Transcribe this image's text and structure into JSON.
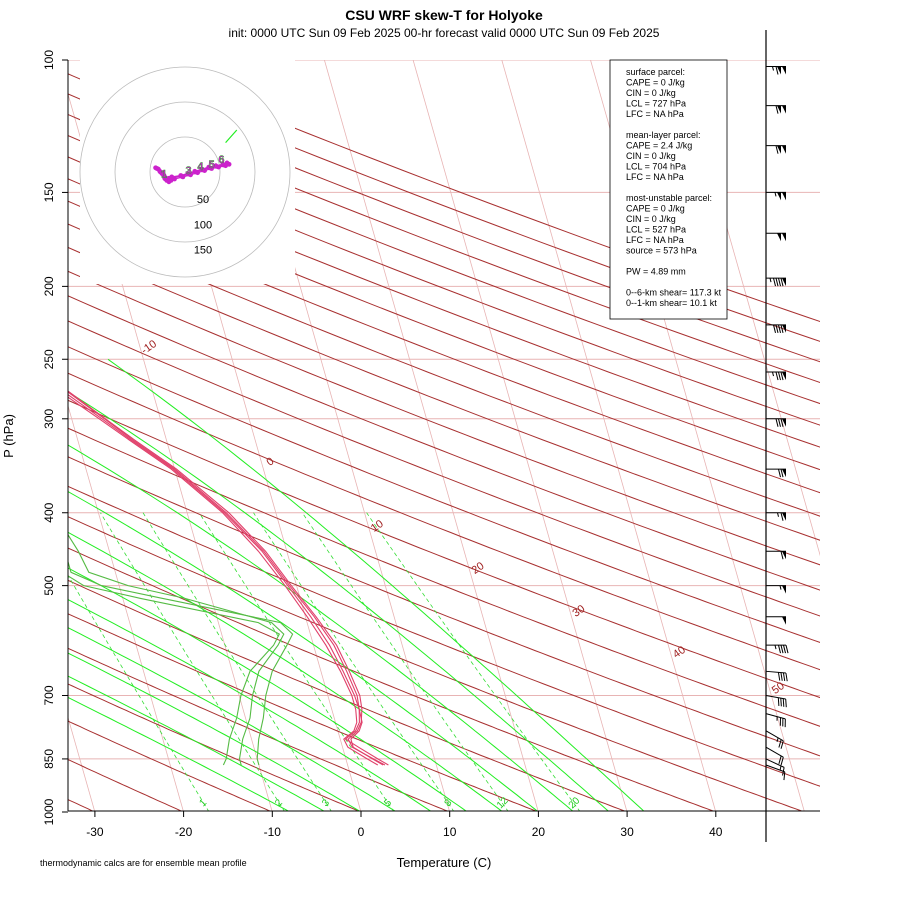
{
  "chart_data": {
    "type": "skew-T",
    "title": "CSU WRF skew-T for Holyoke",
    "subtitle": "init: 0000 UTC Sun 09 Feb 2025     00-hr forecast valid 0000 UTC Sun 09 Feb 2025",
    "xlabel": "Temperature (C)",
    "ylabel": "P (hPa)",
    "footnote": "thermodynamic calcs are for ensemble mean profile",
    "xlim": [
      -33,
      52
    ],
    "ylim": [
      1050,
      100
    ],
    "x_ticks": [
      "-30",
      "-20",
      "-10",
      "0",
      "10",
      "20",
      "30",
      "40"
    ],
    "p_ticks": [
      "100",
      "150",
      "200",
      "250",
      "300",
      "400",
      "500",
      "700",
      "850",
      "1000"
    ],
    "p_tick_values": [
      100,
      150,
      200,
      250,
      300,
      400,
      500,
      700,
      850,
      1000
    ],
    "isotherm_labels": [
      {
        "text": "-10",
        "t": -10
      },
      {
        "text": "0",
        "t": 0
      },
      {
        "text": "10",
        "t": 10
      },
      {
        "text": "20",
        "t": 20
      },
      {
        "text": "30",
        "t": 30
      },
      {
        "text": "40",
        "t": 40
      },
      {
        "text": "50",
        "t": 50
      }
    ],
    "mixing_ratio_labels": [
      "1",
      "2",
      "3",
      "5",
      "8",
      "12",
      "20"
    ],
    "mixing_ratio_values": [
      1,
      2,
      3,
      5,
      8,
      12,
      20
    ],
    "temperature_profiles": [
      {
        "p": [
          866,
          850,
          820,
          800,
          780,
          760,
          730,
          700,
          650,
          600,
          550,
          500,
          450,
          400,
          350,
          320,
          300,
          260,
          220,
          200,
          170,
          150,
          130,
          110,
          104
        ],
        "t": [
          4.0,
          3.0,
          1.2,
          1.2,
          2.4,
          3.0,
          3.1,
          3.0,
          2.5,
          1.8,
          0.6,
          -1.0,
          -2.8,
          -5.8,
          -10.2,
          -14.0,
          -16.6,
          -22.5,
          -31.5,
          -36.0,
          -44.0,
          -50.0,
          -56.5,
          -62.0,
          -64.0
        ]
      },
      {
        "p": [
          866,
          850,
          820,
          800,
          780,
          760,
          730,
          700,
          650,
          600,
          550,
          500,
          450,
          400,
          350,
          320,
          300,
          260,
          220,
          200,
          170,
          150,
          130,
          110,
          104
        ],
        "t": [
          4.6,
          3.6,
          1.8,
          0.6,
          2.0,
          2.7,
          3.1,
          3.3,
          2.9,
          2.3,
          1.0,
          -0.8,
          -2.6,
          -5.6,
          -10.0,
          -13.8,
          -16.3,
          -22.0,
          -30.8,
          -35.6,
          -43.5,
          -49.6,
          -56.2,
          -62.0,
          -64.0
        ]
      },
      {
        "p": [
          866,
          850,
          820,
          800,
          780,
          760,
          730,
          700,
          650,
          600,
          550,
          500,
          450,
          400,
          350,
          320,
          300,
          260,
          220,
          200,
          170,
          150,
          130,
          110,
          104
        ],
        "t": [
          3.4,
          2.4,
          0.6,
          0.4,
          1.8,
          2.4,
          2.7,
          2.7,
          2.2,
          1.4,
          0.2,
          -1.3,
          -3.2,
          -6.0,
          -10.4,
          -14.2,
          -16.9,
          -23.0,
          -32.0,
          -36.5,
          -44.6,
          -50.4,
          -56.8,
          -62.0,
          -64.0
        ]
      },
      {
        "p": [
          866,
          850,
          820,
          800,
          780,
          760,
          730,
          700,
          650,
          600,
          550,
          500,
          450,
          400,
          350,
          320,
          300,
          260,
          220,
          200,
          170,
          150,
          130,
          110,
          104
        ],
        "t": [
          4.2,
          3.1,
          1.1,
          0.9,
          2.2,
          2.9,
          3.4,
          3.6,
          3.2,
          2.6,
          1.2,
          -0.6,
          -2.4,
          -5.3,
          -9.8,
          -13.6,
          -16.2,
          -21.8,
          -30.5,
          -35.3,
          -43.2,
          -49.2,
          -55.9,
          -61.8,
          -64.0
        ]
      }
    ],
    "dewpoint_profiles": [
      {
        "p": [
          866,
          850,
          800,
          750,
          700,
          650,
          600,
          580,
          560,
          520,
          500,
          480,
          450,
          400,
          350,
          320,
          300,
          280,
          250,
          220,
          200,
          190
        ],
        "t": [
          -12.0,
          -12.0,
          -11.0,
          -9.5,
          -8.5,
          -7.0,
          -4.0,
          -3.0,
          -4.0,
          -13.0,
          -19.0,
          -23.0,
          -23.5,
          -25.0,
          -25.5,
          -31.0,
          -34.0,
          -34.5,
          -35.5,
          -38.0,
          -42.0,
          -44.0
        ]
      },
      {
        "p": [
          866,
          850,
          800,
          750,
          700,
          650,
          600,
          580,
          560,
          520,
          500,
          480,
          450,
          400,
          350,
          320,
          300,
          280,
          250,
          220,
          200,
          190
        ],
        "t": [
          -14.0,
          -13.5,
          -12.5,
          -11.0,
          -9.8,
          -8.0,
          -4.5,
          -3.5,
          -5.5,
          -18.0,
          -24.0,
          -26.0,
          -26.0,
          -26.2,
          -26.0,
          -31.5,
          -34.5,
          -35.0,
          -36.5,
          -39.0,
          -42.5,
          -44.0
        ]
      },
      {
        "p": [
          866,
          850,
          800,
          750,
          700,
          650,
          600,
          580,
          560,
          520,
          500,
          480,
          450,
          400,
          350,
          320,
          300,
          280,
          250,
          220,
          200,
          190
        ],
        "t": [
          -10.0,
          -10.0,
          -9.2,
          -8.0,
          -7.0,
          -5.5,
          -3.0,
          -2.0,
          -3.0,
          -15.5,
          -22.0,
          -25.0,
          -25.0,
          -25.5,
          -25.8,
          -30.5,
          -33.5,
          -34.0,
          -35.2,
          -38.5,
          -42.2,
          -44.0
        ]
      }
    ],
    "wind_barbs": [
      {
        "p": 866,
        "speed": 10,
        "dir": 290
      },
      {
        "p": 850,
        "speed": 15,
        "dir": 295
      },
      {
        "p": 820,
        "speed": 20,
        "dir": 300
      },
      {
        "p": 780,
        "speed": 25,
        "dir": 300
      },
      {
        "p": 740,
        "speed": 35,
        "dir": 285
      },
      {
        "p": 700,
        "speed": 40,
        "dir": 280
      },
      {
        "p": 650,
        "speed": 40,
        "dir": 275
      },
      {
        "p": 600,
        "speed": 45,
        "dir": 270
      },
      {
        "p": 550,
        "speed": 50,
        "dir": 270
      },
      {
        "p": 500,
        "speed": 55,
        "dir": 270
      },
      {
        "p": 450,
        "speed": 60,
        "dir": 270
      },
      {
        "p": 400,
        "speed": 65,
        "dir": 270
      },
      {
        "p": 350,
        "speed": 70,
        "dir": 270
      },
      {
        "p": 300,
        "speed": 80,
        "dir": 270
      },
      {
        "p": 260,
        "speed": 85,
        "dir": 270
      },
      {
        "p": 225,
        "speed": 90,
        "dir": 270
      },
      {
        "p": 195,
        "speed": 95,
        "dir": 270
      },
      {
        "p": 170,
        "speed": 100,
        "dir": 270
      },
      {
        "p": 150,
        "speed": 105,
        "dir": 270
      },
      {
        "p": 130,
        "speed": 110,
        "dir": 270
      },
      {
        "p": 115,
        "speed": 110,
        "dir": 270
      },
      {
        "p": 102,
        "speed": 115,
        "dir": 270
      }
    ],
    "hodograph": {
      "ring_labels": [
        "50",
        "100",
        "150"
      ],
      "ring_values": [
        50,
        100,
        150
      ],
      "traces": [
        {
          "u": [
            -40,
            -35,
            -30,
            -28,
            -25,
            -22,
            -18,
            -5,
            5,
            15,
            25,
            35,
            45,
            55,
            60
          ],
          "v": [
            5,
            0,
            -5,
            -10,
            -12,
            -10,
            -8,
            -6,
            -3,
            0,
            3,
            6,
            8,
            10,
            12
          ]
        },
        {
          "u": [
            -38,
            -33,
            -28,
            -26,
            -23,
            -20,
            -15,
            -3,
            8,
            18,
            28,
            38,
            48,
            58,
            63
          ],
          "v": [
            4,
            -2,
            -8,
            -12,
            -14,
            -12,
            -10,
            -7,
            -4,
            -1,
            2,
            5,
            7,
            9,
            11
          ]
        },
        {
          "u": [
            -42,
            -36,
            -31,
            -29,
            -26,
            -23,
            -19,
            -6,
            4,
            14,
            24,
            34,
            44,
            54,
            60
          ],
          "v": [
            6,
            1,
            -4,
            -9,
            -11,
            -9,
            -7,
            -5,
            -2,
            1,
            4,
            7,
            9,
            11,
            13
          ]
        }
      ],
      "height_labels": [
        {
          "text": "1",
          "u": -30,
          "v": -8
        },
        {
          "text": "3",
          "u": 5,
          "v": -3
        },
        {
          "text": "4",
          "u": 22,
          "v": 3
        },
        {
          "text": "5",
          "u": 38,
          "v": 6
        },
        {
          "text": "6",
          "u": 52,
          "v": 13
        }
      ],
      "upper_segment": {
        "u": [
          58,
          74
        ],
        "v": [
          42,
          60
        ]
      }
    },
    "stats": [
      "surface parcel:",
      "CAPE = 0 J/kg",
      "CIN = 0 J/kg",
      "LCL = 727 hPa",
      "LFC = NA hPa",
      "",
      "mean-layer parcel:",
      "CAPE = 2.4 J/kg",
      "CIN = 0 J/kg",
      "LCL = 704 hPa",
      "LFC = NA hPa",
      "",
      "most-unstable parcel:",
      "CAPE = 0 J/kg",
      "CIN = 0 J/kg",
      "LCL = 527 hPa",
      "LFC = NA hPa",
      "source = 573 hPa",
      "",
      "PW =  4.89 mm",
      "",
      "0--6-km shear= 117.3 kt",
      "0--1-km shear= 10.1 kt"
    ],
    "colors": {
      "temperature": "#e0406a",
      "dewpoint": "#55bb44",
      "isotherm": "#e8b4b4",
      "dry_adiabat": "#a83030",
      "moist_adiabat": "#22ee22",
      "mixing_ratio": "#33dd33",
      "isobar": "#e8b4b4",
      "hodograph": "#cc22cc",
      "hodograph_ring": "#bbbbbb"
    }
  }
}
